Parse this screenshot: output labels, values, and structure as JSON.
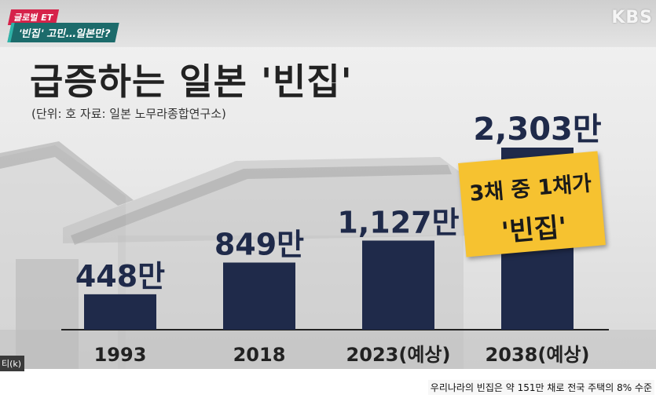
{
  "header": {
    "tag": "글로벌 ET",
    "headline": "'빈집' 고민…일본만?",
    "logo": "KBS"
  },
  "title": "급증하는 일본 '빈집'",
  "subtitle": "(단위: 호  자료: 일본 노무라종합연구소)",
  "callout": {
    "line1": "3채 중 1채가",
    "line2": "'빈집'"
  },
  "badge": "티(k)",
  "caption": "우리나라의 빈집은  약 151만 채로 전국 주택의 8% 수준",
  "colors": {
    "bar": "#1f2a4a",
    "callout": "#f6c230",
    "label": "#1f2a4a"
  },
  "chart_data": {
    "type": "bar",
    "categories": [
      "1993",
      "2018",
      "2023(예상)",
      "2038(예상)"
    ],
    "values": [
      448,
      849,
      1127,
      2303
    ],
    "value_labels": [
      "448만",
      "849만",
      "1,127만",
      "2,303만"
    ],
    "unit": "만"
  }
}
